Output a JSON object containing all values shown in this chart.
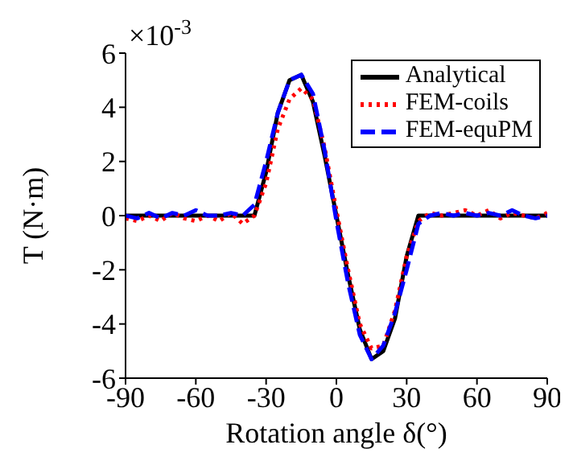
{
  "chart_data": {
    "type": "line",
    "xlabel": "Rotation angle δ(°)",
    "ylabel": "T (N·m)",
    "annotations": [
      "×10$^{-3}$"
    ],
    "xlim": [
      -90,
      90
    ],
    "xticks": [
      -90,
      -60,
      -30,
      0,
      30,
      60,
      90
    ],
    "ylim": [
      -6,
      6
    ],
    "yticks": [
      -6,
      -4,
      -2,
      0,
      2,
      4,
      6
    ],
    "grid": false,
    "legend": "top right",
    "marker": "none",
    "series": [
      {
        "name": "Analytical",
        "color": "#000000",
        "line_style": "solid",
        "x": [
          -90,
          -60,
          -35,
          -30,
          -25,
          -20,
          -15,
          -10,
          -5,
          0,
          5,
          10,
          15,
          20,
          25,
          30,
          35,
          60,
          90
        ],
        "values": [
          0,
          0,
          0,
          1.6,
          3.8,
          5.0,
          5.2,
          4.2,
          2.2,
          0,
          -2.2,
          -4.2,
          -5.3,
          -5.0,
          -3.8,
          -1.5,
          0,
          0,
          0
        ]
      },
      {
        "name": "FEM-coils",
        "color": "#ff0000",
        "line_style": "dotted",
        "x": [
          -90,
          -85,
          -80,
          -75,
          -70,
          -65,
          -60,
          -55,
          -50,
          -45,
          -40,
          -35,
          -30,
          -25,
          -20,
          -15,
          -10,
          -5,
          0,
          5,
          10,
          15,
          20,
          25,
          30,
          35,
          40,
          45,
          50,
          55,
          60,
          65,
          70,
          75,
          80,
          85,
          90
        ],
        "values": [
          -0.1,
          -0.2,
          0,
          -0.2,
          0.1,
          -0.1,
          -0.2,
          0,
          -0.2,
          0.1,
          -0.3,
          0,
          1.2,
          3.2,
          4.3,
          4.7,
          4.3,
          2.5,
          0.2,
          -2.0,
          -4.0,
          -4.9,
          -4.8,
          -3.5,
          -1.5,
          -0.2,
          0.1,
          0,
          0.1,
          0.2,
          0,
          0.2,
          -0.1,
          0.1,
          0,
          -0.1,
          0.1
        ]
      },
      {
        "name": "FEM-equPM",
        "color": "#0000ff",
        "line_style": "dashed",
        "x": [
          -90,
          -85,
          -80,
          -75,
          -70,
          -65,
          -60,
          -55,
          -50,
          -45,
          -40,
          -35,
          -30,
          -25,
          -20,
          -15,
          -10,
          -5,
          0,
          5,
          10,
          15,
          20,
          25,
          30,
          35,
          40,
          45,
          50,
          55,
          60,
          65,
          70,
          75,
          80,
          85,
          90
        ],
        "values": [
          0,
          -0.1,
          0.1,
          -0.1,
          0.1,
          0,
          0.2,
          0,
          0,
          0.1,
          0,
          0.4,
          2.0,
          3.8,
          5.0,
          5.2,
          4.5,
          2.4,
          -0.2,
          -2.5,
          -4.4,
          -5.3,
          -4.8,
          -3.6,
          -2.0,
          -0.3,
          0,
          0.1,
          0,
          0.1,
          0,
          0.1,
          0,
          0.2,
          0,
          -0.1,
          0
        ]
      }
    ]
  }
}
